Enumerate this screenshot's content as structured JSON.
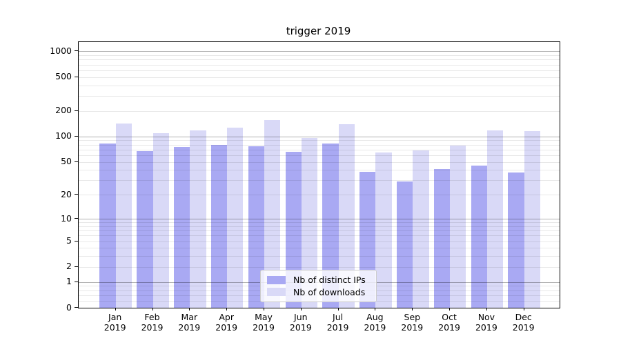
{
  "chart_data": {
    "type": "bar",
    "title": "trigger 2019",
    "categories": [
      "Jan 2019",
      "Feb 2019",
      "Mar 2019",
      "Apr 2019",
      "May 2019",
      "Jun 2019",
      "Jul 2019",
      "Aug 2019",
      "Sep 2019",
      "Oct 2019",
      "Nov 2019",
      "Dec 2019"
    ],
    "series": [
      {
        "name": "Nb of distinct IPs",
        "color": "#a9a9f3",
        "values": [
          83,
          67,
          75,
          79,
          77,
          66,
          83,
          38,
          29,
          41,
          45,
          37
        ]
      },
      {
        "name": "Nb of downloads",
        "color": "#d9d9f7",
        "values": [
          141,
          110,
          117,
          128,
          155,
          95,
          139,
          65,
          68,
          78,
          117,
          115
        ]
      }
    ],
    "xlabel": "",
    "ylabel": "",
    "yscale": "log1p",
    "ylim": [
      0,
      1280
    ],
    "yticks": [
      0,
      1,
      2,
      5,
      10,
      20,
      50,
      100,
      200,
      500,
      1000
    ],
    "grid": "on",
    "legend_position": "lower center"
  },
  "colors": {
    "axis": "#000000",
    "gridline_major": "#b1b1b1",
    "gridline_minor": "#e8e8e8",
    "background": "#ffffff"
  }
}
